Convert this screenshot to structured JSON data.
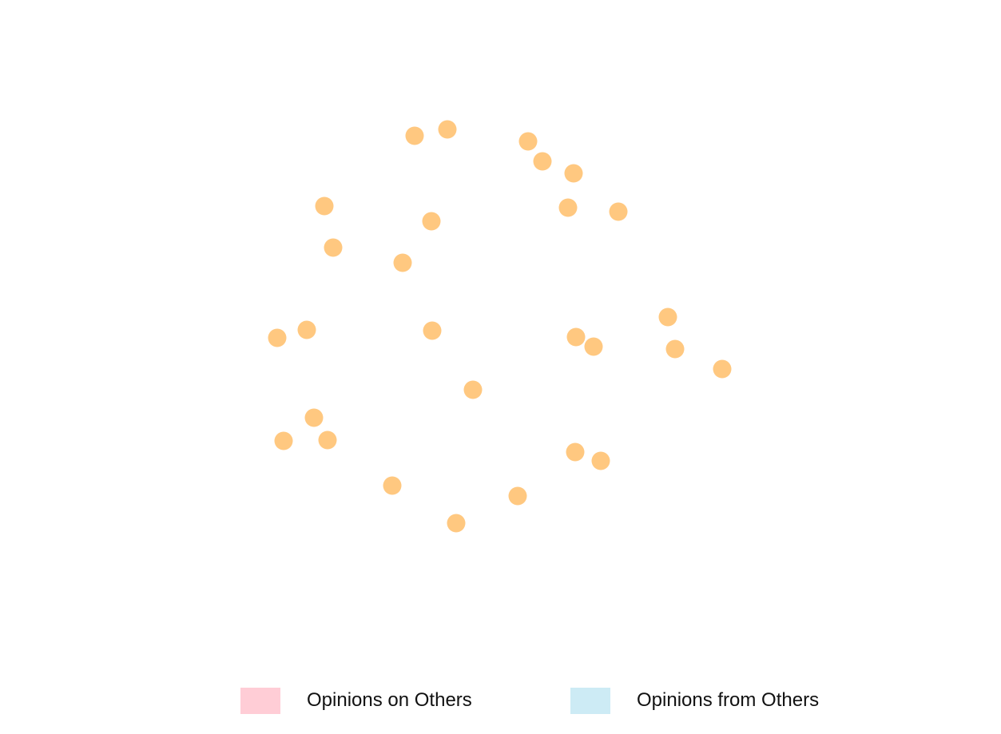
{
  "graph": {
    "node_color": "#FFC880",
    "nodes": [
      {
        "id": "n1"
      },
      {
        "id": "n2"
      },
      {
        "id": "n3"
      },
      {
        "id": "n4"
      },
      {
        "id": "n5"
      },
      {
        "id": "n6"
      },
      {
        "id": "n7"
      },
      {
        "id": "n8"
      },
      {
        "id": "n9"
      },
      {
        "id": "n10"
      },
      {
        "id": "n11"
      },
      {
        "id": "n12"
      },
      {
        "id": "n13"
      },
      {
        "id": "n14"
      },
      {
        "id": "n15"
      },
      {
        "id": "n16"
      },
      {
        "id": "n17"
      },
      {
        "id": "n18"
      },
      {
        "id": "n19"
      },
      {
        "id": "n20"
      },
      {
        "id": "n21"
      },
      {
        "id": "n22"
      },
      {
        "id": "n23"
      },
      {
        "id": "n24"
      },
      {
        "id": "n25"
      },
      {
        "id": "n26"
      },
      {
        "id": "n27"
      },
      {
        "id": "n28"
      },
      {
        "id": "n29"
      },
      {
        "id": "n30"
      }
    ]
  },
  "legend": {
    "items": [
      {
        "label": "Opinions on Others",
        "color": "#FFCDD6"
      },
      {
        "label": "Opinions from Others",
        "color": "#CDEBF5"
      }
    ]
  }
}
